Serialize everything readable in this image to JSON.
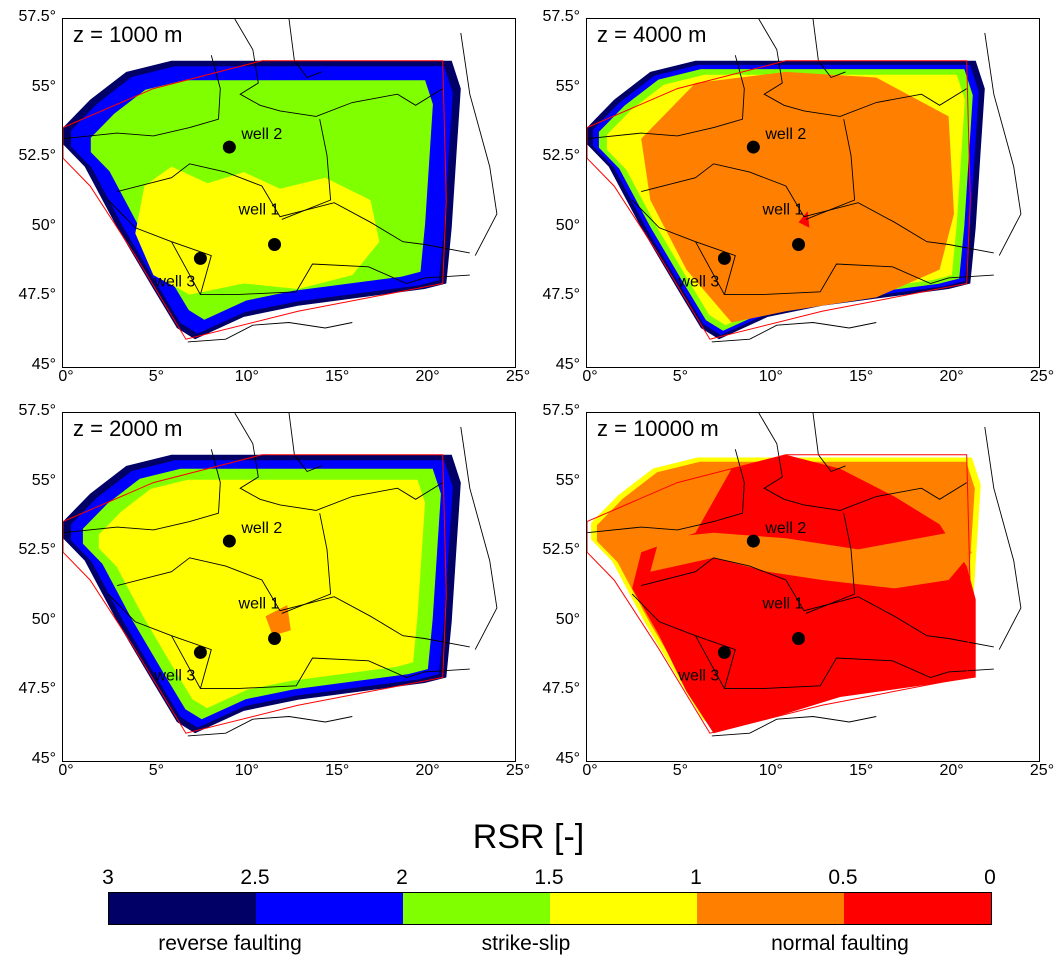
{
  "panels": [
    {
      "label": "z = 1000 m",
      "scheme": "p1000"
    },
    {
      "label": "z = 4000 m",
      "scheme": "p4000"
    },
    {
      "label": "z = 2000 m",
      "scheme": "p2000"
    },
    {
      "label": "z = 10000 m",
      "scheme": "p10000"
    }
  ],
  "axes": {
    "y_ticks": [
      "57.5°",
      "55°",
      "52.5°",
      "50°",
      "47.5°",
      "45°"
    ],
    "x_ticks": [
      "0°",
      "5°",
      "10°",
      "15°",
      "20°",
      "25°"
    ],
    "lon_range": [
      0,
      25
    ],
    "lat_range": [
      45,
      57.5
    ]
  },
  "wells": [
    {
      "name": "well 1",
      "lon": 11.7,
      "lat": 49.4
    },
    {
      "name": "well 2",
      "lon": 9.2,
      "lat": 52.9
    },
    {
      "name": "well 3",
      "lon": 7.6,
      "lat": 48.9
    }
  ],
  "colorbar": {
    "title": "RSR [-]",
    "ticks": [
      "3",
      "2.5",
      "2",
      "1.5",
      "1",
      "0.5",
      "0"
    ],
    "colors": [
      "#000066",
      "#0000ff",
      "#80ff00",
      "#ffff00",
      "#ff8000",
      "#ff0000"
    ],
    "regimes": [
      "reverse faulting",
      "strike-slip",
      "normal faulting"
    ]
  }
}
